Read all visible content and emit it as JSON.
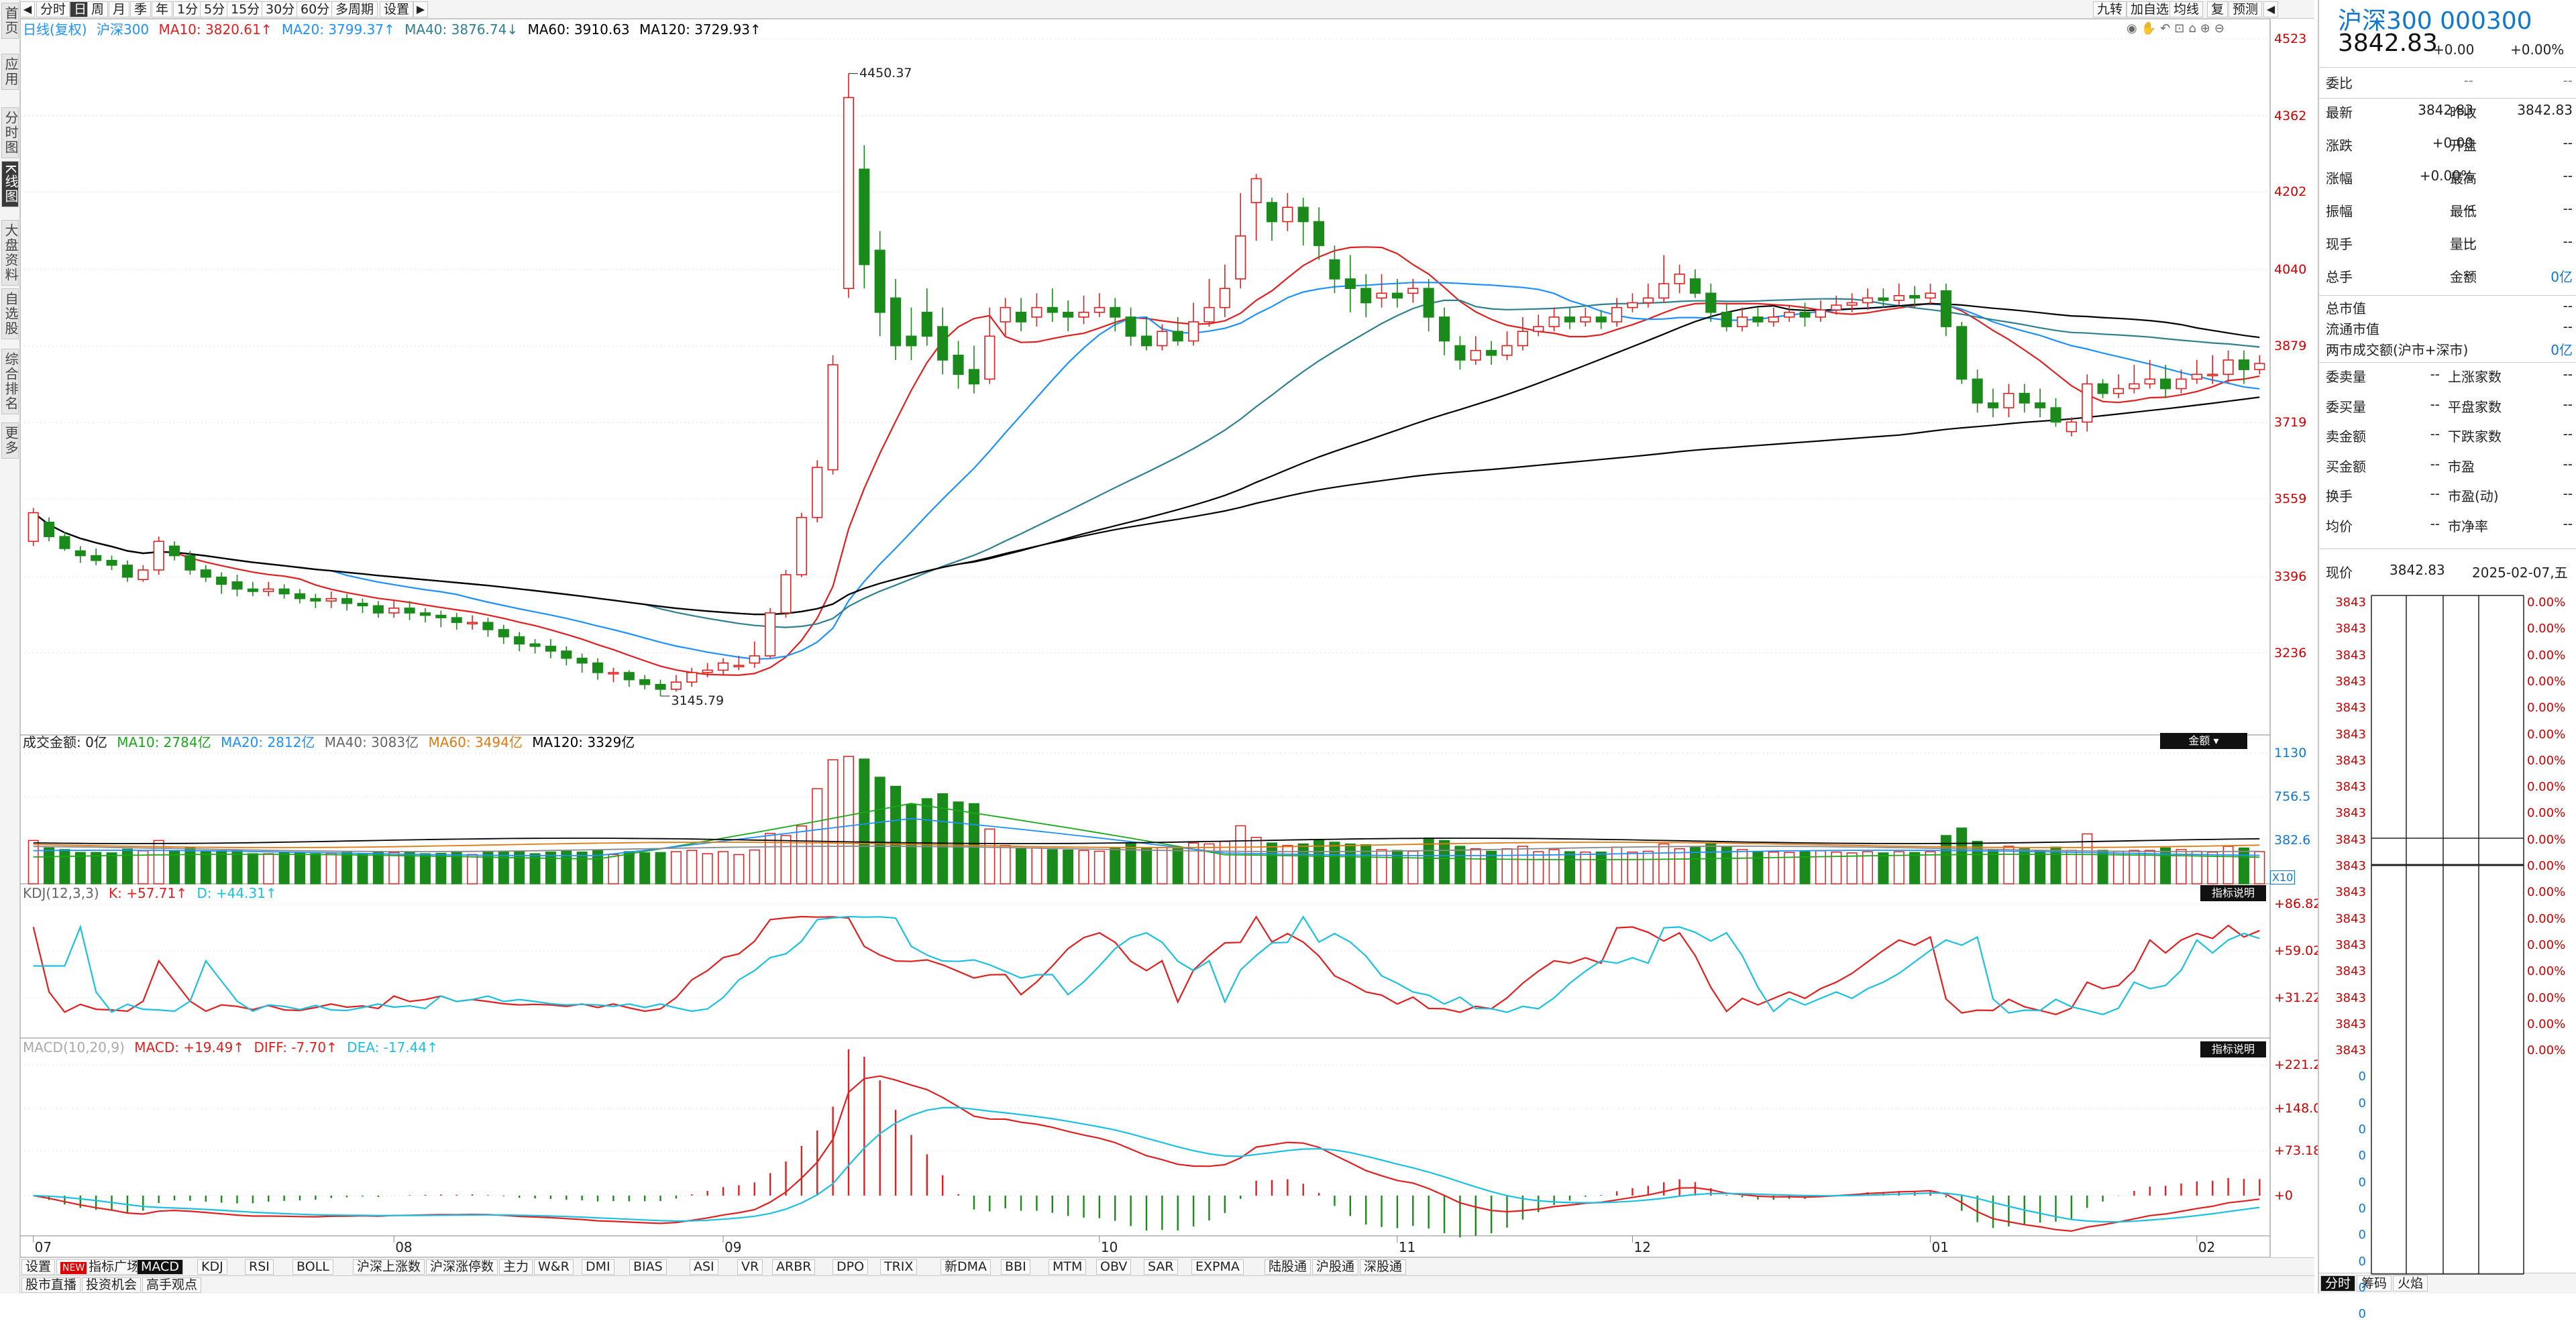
{
  "sidebar": {
    "items": [
      "首页",
      "应用",
      "分时图",
      "K线图",
      "大盘资料",
      "自选股",
      "综合排名",
      "更多"
    ],
    "active": 3
  },
  "toolbar": {
    "periods": [
      "分时",
      "日",
      "周",
      "月",
      "季",
      "年",
      "1分",
      "5分",
      "15分",
      "30分",
      "60分",
      "多周期",
      "设置"
    ],
    "active": 1,
    "right_buttons": [
      "九转",
      "加自选",
      "均线",
      "复",
      "预测"
    ]
  },
  "main": {
    "legend": {
      "title": "日线(复权)",
      "name": "沪深300",
      "ma10": "MA10: 3820.61↑",
      "ma20": "MA20: 3799.37↑",
      "ma40": "MA40: 3876.74↓",
      "ma60": "MA60: 3910.63",
      "ma120": "MA120: 3729.93↑"
    },
    "y_labels": [
      "4523",
      "4362",
      "4202",
      "4040",
      "3879",
      "3719",
      "3559",
      "3396",
      "3236"
    ],
    "high_label": "4450.37",
    "low_label": "3145.79"
  },
  "volume": {
    "legend": {
      "name": "成交金额: 0亿",
      "ma10": "MA10: 2784亿",
      "ma20": "MA20: 2812亿",
      "ma40": "MA40: 3083亿",
      "ma60": "MA60: 3494亿",
      "ma120": "MA120: 3329亿"
    },
    "y_labels": [
      "1130",
      "756.5",
      "382.6"
    ],
    "unit": "X10",
    "tag": "金额"
  },
  "kdj": {
    "legend": {
      "name": "KDJ(12,3,3)",
      "k": "K: +57.71↑",
      "d": "D: +44.31↑"
    },
    "y_labels": [
      "+86.82",
      "+59.02",
      "+31.22"
    ],
    "tag": "指标说明"
  },
  "macd": {
    "legend": {
      "name": "MACD(10,20,9)",
      "macd": "MACD: +19.49↑",
      "diff": "DIFF: -7.70↑",
      "dea": "DEA: -17.44↑"
    },
    "y_labels": [
      "+221.2",
      "+148.0",
      "+73.18",
      "+0"
    ],
    "tag": "指标说明"
  },
  "x_labels": [
    "07",
    "08",
    "09",
    "10",
    "11",
    "12",
    "01",
    "02"
  ],
  "indicator_tabs": [
    "设置",
    "指标广场",
    "MACD",
    "KDJ",
    "RSI",
    "BOLL",
    "沪深上涨数",
    "沪深涨停数",
    "主力",
    "W&R",
    "DMI",
    "BIAS",
    "ASI",
    "VR",
    "ARBR",
    "DPO",
    "TRIX",
    "新DMA",
    "BBI",
    "MTM",
    "OBV",
    "SAR",
    "EXPMA",
    "陆股通",
    "沪股通",
    "深股通"
  ],
  "indicator_new_badge": "NEW",
  "indicator_active": "MACD",
  "bottom_tabs": [
    "股市直播",
    "投资机会",
    "高手观点"
  ],
  "right_panel": {
    "title": "沪深300 000300",
    "price": "3842.83",
    "change": "+0.00",
    "pct": "+0.00%",
    "weibi": {
      "label": "委比",
      "value": "--",
      "extra": "--"
    },
    "rows": [
      {
        "l1": "最新",
        "v1": "3842.83",
        "l2": "昨收",
        "v2": "3842.83"
      },
      {
        "l1": "涨跌",
        "v1": "+0.00",
        "l2": "开盘",
        "v2": "--"
      },
      {
        "l1": "涨幅",
        "v1": "+0.00%",
        "l2": "最高",
        "v2": "--"
      },
      {
        "l1": "振幅",
        "v1": "--",
        "l2": "最低",
        "v2": "--"
      },
      {
        "l1": "现手",
        "v1": "--",
        "l2": "量比",
        "v2": "--"
      },
      {
        "l1": "总手",
        "v1": "--",
        "l2": "金额",
        "v2": "0亿"
      }
    ],
    "cap_rows": [
      {
        "l": "总市值",
        "v": "--"
      },
      {
        "l": "流通市值",
        "v": "--"
      },
      {
        "l": "两市成交额(沪市+深市)",
        "v": "0亿"
      }
    ],
    "rows2": [
      {
        "l1": "委卖量",
        "v1": "--",
        "l2": "上涨家数",
        "v2": "--"
      },
      {
        "l1": "委买量",
        "v1": "--",
        "l2": "平盘家数",
        "v2": "--"
      },
      {
        "l1": "卖金额",
        "v1": "--",
        "l2": "下跌家数",
        "v2": "--"
      },
      {
        "l1": "买金额",
        "v1": "--",
        "l2": "市盈",
        "v2": "--"
      },
      {
        "l1": "换手",
        "v1": "--",
        "l2": "市盈(动)",
        "v2": "--"
      },
      {
        "l1": "均价",
        "v1": "--",
        "l2": "市净率",
        "v2": "--"
      }
    ],
    "current": {
      "label": "现价",
      "value": "3842.83",
      "date": "2025-02-07,五"
    },
    "tick_left": [
      "3843",
      "3843",
      "3843",
      "3843",
      "3843",
      "3843",
      "3843",
      "3843",
      "3843",
      "3843",
      "3843",
      "3843",
      "3843",
      "3843",
      "3843",
      "3843",
      "3843",
      "3843",
      "0",
      "0",
      "0",
      "0",
      "0",
      "0",
      "0",
      "0",
      "0",
      "0"
    ],
    "tick_right": [
      "0.00%",
      "0.00%",
      "0.00%",
      "0.00%",
      "0.00%",
      "0.00%",
      "0.00%",
      "0.00%",
      "0.00%",
      "0.00%",
      "0.00%",
      "0.00%",
      "0.00%",
      "0.00%",
      "0.00%",
      "0.00%",
      "0.00%",
      "0.00%"
    ],
    "bottom_tabs": [
      "分时",
      "筹码",
      "火焰"
    ]
  },
  "colors": {
    "up": "#e02020",
    "down": "#1a8a1a",
    "ma10": "#e02020",
    "ma20": "#1e90ff",
    "ma40": "#2f7f8f",
    "ma60": "#000000",
    "ma120": "#000000",
    "accent": "#1177cc"
  },
  "chart_data": {
    "type": "candlestick",
    "title": "沪深300",
    "price_range": [
      3145.79,
      4523
    ],
    "candles": [
      [
        3470,
        3530,
        3540,
        3460
      ],
      [
        3510,
        3480,
        3520,
        3470
      ],
      [
        3480,
        3455,
        3490,
        3450
      ],
      [
        3450,
        3440,
        3460,
        3425
      ],
      [
        3440,
        3430,
        3455,
        3420
      ],
      [
        3430,
        3420,
        3440,
        3410
      ],
      [
        3420,
        3395,
        3430,
        3385
      ],
      [
        3390,
        3410,
        3420,
        3385
      ],
      [
        3410,
        3470,
        3480,
        3400
      ],
      [
        3460,
        3440,
        3470,
        3430
      ],
      [
        3440,
        3410,
        3450,
        3400
      ],
      [
        3410,
        3395,
        3420,
        3385
      ],
      [
        3395,
        3380,
        3405,
        3360
      ],
      [
        3385,
        3370,
        3400,
        3355
      ],
      [
        3370,
        3365,
        3385,
        3355
      ],
      [
        3365,
        3370,
        3385,
        3355
      ],
      [
        3370,
        3360,
        3380,
        3350
      ],
      [
        3360,
        3350,
        3370,
        3340
      ],
      [
        3350,
        3345,
        3360,
        3330
      ],
      [
        3345,
        3350,
        3365,
        3330
      ],
      [
        3350,
        3340,
        3360,
        3325
      ],
      [
        3340,
        3335,
        3350,
        3320
      ],
      [
        3335,
        3320,
        3345,
        3310
      ],
      [
        3320,
        3330,
        3345,
        3310
      ],
      [
        3330,
        3320,
        3345,
        3305
      ],
      [
        3320,
        3315,
        3330,
        3300
      ],
      [
        3315,
        3310,
        3325,
        3290
      ],
      [
        3310,
        3300,
        3320,
        3285
      ],
      [
        3300,
        3300,
        3315,
        3285
      ],
      [
        3300,
        3285,
        3310,
        3270
      ],
      [
        3285,
        3270,
        3295,
        3255
      ],
      [
        3270,
        3255,
        3280,
        3240
      ],
      [
        3255,
        3250,
        3265,
        3235
      ],
      [
        3250,
        3240,
        3265,
        3225
      ],
      [
        3240,
        3225,
        3250,
        3210
      ],
      [
        3225,
        3215,
        3235,
        3195
      ],
      [
        3215,
        3195,
        3225,
        3180
      ],
      [
        3195,
        3195,
        3205,
        3175
      ],
      [
        3195,
        3180,
        3200,
        3165
      ],
      [
        3180,
        3170,
        3190,
        3160
      ],
      [
        3170,
        3160,
        3180,
        3145.79
      ],
      [
        3160,
        3175,
        3190,
        3155
      ],
      [
        3175,
        3195,
        3205,
        3165
      ],
      [
        3195,
        3200,
        3215,
        3185
      ],
      [
        3200,
        3215,
        3225,
        3190
      ],
      [
        3210,
        3210,
        3230,
        3200
      ],
      [
        3215,
        3230,
        3260,
        3205
      ],
      [
        3230,
        3320,
        3330,
        3225
      ],
      [
        3320,
        3400,
        3410,
        3310
      ],
      [
        3400,
        3520,
        3530,
        3395
      ],
      [
        3520,
        3625,
        3640,
        3510
      ],
      [
        3620,
        3840,
        3860,
        3610
      ],
      [
        4000,
        4400,
        4450.37,
        3980
      ],
      [
        4250,
        4050,
        4300,
        4000
      ],
      [
        4080,
        3950,
        4120,
        3900
      ],
      [
        3980,
        3880,
        4020,
        3850
      ],
      [
        3900,
        3880,
        3960,
        3850
      ],
      [
        3950,
        3900,
        4000,
        3880
      ],
      [
        3920,
        3850,
        3960,
        3820
      ],
      [
        3860,
        3820,
        3890,
        3790
      ],
      [
        3830,
        3800,
        3880,
        3780
      ],
      [
        3810,
        3900,
        3960,
        3800
      ],
      [
        3930,
        3960,
        3980,
        3900
      ],
      [
        3950,
        3930,
        3980,
        3910
      ],
      [
        3940,
        3960,
        3990,
        3920
      ],
      [
        3960,
        3950,
        4000,
        3930
      ],
      [
        3950,
        3940,
        3975,
        3910
      ],
      [
        3940,
        3950,
        3985,
        3925
      ],
      [
        3950,
        3960,
        3990,
        3940
      ],
      [
        3960,
        3940,
        3980,
        3910
      ],
      [
        3940,
        3900,
        3960,
        3880
      ],
      [
        3900,
        3880,
        3940,
        3870
      ],
      [
        3880,
        3910,
        3925,
        3870
      ],
      [
        3910,
        3890,
        3940,
        3880
      ],
      [
        3890,
        3930,
        3970,
        3880
      ],
      [
        3930,
        3960,
        4020,
        3920
      ],
      [
        3960,
        4000,
        4050,
        3940
      ],
      [
        4020,
        4110,
        4200,
        4000
      ],
      [
        4180,
        4230,
        4240,
        4100
      ],
      [
        4180,
        4140,
        4190,
        4100
      ],
      [
        4140,
        4170,
        4200,
        4120
      ],
      [
        4170,
        4140,
        4190,
        4090
      ],
      [
        4140,
        4090,
        4170,
        4060
      ],
      [
        4060,
        4020,
        4090,
        3990
      ],
      [
        4020,
        4000,
        4070,
        3950
      ],
      [
        4000,
        3970,
        4030,
        3940
      ],
      [
        3980,
        3990,
        4030,
        3960
      ],
      [
        3990,
        3980,
        4020,
        3960
      ],
      [
        3990,
        4000,
        4020,
        3970
      ],
      [
        4000,
        3940,
        4020,
        3910
      ],
      [
        3940,
        3890,
        3960,
        3860
      ],
      [
        3880,
        3850,
        3900,
        3830
      ],
      [
        3850,
        3870,
        3900,
        3840
      ],
      [
        3870,
        3860,
        3890,
        3840
      ],
      [
        3860,
        3880,
        3910,
        3850
      ],
      [
        3880,
        3910,
        3940,
        3870
      ],
      [
        3910,
        3920,
        3945,
        3900
      ],
      [
        3920,
        3940,
        3960,
        3910
      ],
      [
        3940,
        3930,
        3960,
        3915
      ],
      [
        3930,
        3940,
        3960,
        3920
      ],
      [
        3940,
        3930,
        3955,
        3915
      ],
      [
        3930,
        3960,
        3980,
        3920
      ],
      [
        3960,
        3970,
        3990,
        3950
      ],
      [
        3970,
        3980,
        4010,
        3960
      ],
      [
        3980,
        4010,
        4070,
        3970
      ],
      [
        4010,
        4030,
        4050,
        3990
      ],
      [
        4020,
        3990,
        4040,
        3980
      ],
      [
        3990,
        3950,
        4010,
        3930
      ],
      [
        3950,
        3920,
        3970,
        3910
      ],
      [
        3920,
        3940,
        3960,
        3910
      ],
      [
        3940,
        3930,
        3960,
        3920
      ],
      [
        3930,
        3940,
        3960,
        3920
      ],
      [
        3940,
        3950,
        3965,
        3930
      ],
      [
        3950,
        3940,
        3970,
        3920
      ],
      [
        3940,
        3955,
        3975,
        3930
      ],
      [
        3955,
        3965,
        3985,
        3945
      ],
      [
        3965,
        3970,
        3990,
        3950
      ],
      [
        3970,
        3980,
        4000,
        3955
      ],
      [
        3980,
        3975,
        4000,
        3960
      ],
      [
        3975,
        3985,
        4010,
        3965
      ],
      [
        3985,
        3980,
        4005,
        3960
      ],
      [
        3980,
        3990,
        4010,
        3965
      ],
      [
        3995,
        3920,
        4010,
        3900
      ],
      [
        3920,
        3810,
        3930,
        3800
      ],
      [
        3810,
        3760,
        3830,
        3740
      ],
      [
        3760,
        3750,
        3790,
        3730
      ],
      [
        3750,
        3780,
        3800,
        3730
      ],
      [
        3780,
        3760,
        3800,
        3740
      ],
      [
        3760,
        3750,
        3790,
        3730
      ],
      [
        3750,
        3720,
        3770,
        3710
      ],
      [
        3700,
        3720,
        3730,
        3690
      ],
      [
        3720,
        3800,
        3820,
        3700
      ],
      [
        3800,
        3780,
        3810,
        3770
      ],
      [
        3780,
        3790,
        3820,
        3770
      ],
      [
        3790,
        3800,
        3840,
        3780
      ],
      [
        3800,
        3810,
        3850,
        3790
      ],
      [
        3810,
        3790,
        3840,
        3770
      ],
      [
        3790,
        3810,
        3830,
        3780
      ],
      [
        3810,
        3820,
        3850,
        3800
      ],
      [
        3820,
        3820,
        3860,
        3800
      ],
      [
        3820,
        3850,
        3870,
        3800
      ],
      [
        3850,
        3830,
        3870,
        3800
      ],
      [
        3830,
        3842.83,
        3860,
        3820
      ]
    ]
  }
}
